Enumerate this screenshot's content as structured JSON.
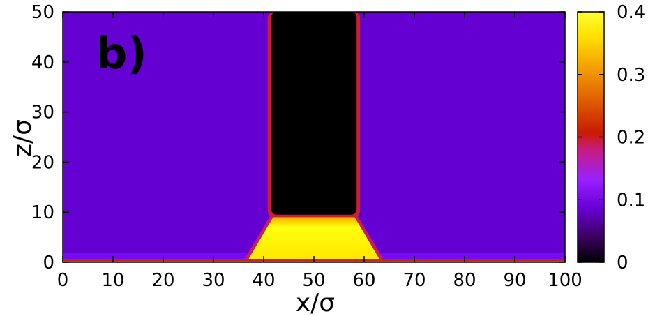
{
  "chart_data": {
    "type": "heatmap",
    "panel_label": "b)",
    "xlabel": "x/σ",
    "ylabel": "z/σ",
    "xlim": [
      0,
      100
    ],
    "ylim": [
      0,
      50
    ],
    "x_ticks": [
      0,
      10,
      20,
      30,
      40,
      50,
      60,
      70,
      80,
      90,
      100
    ],
    "y_ticks": [
      0,
      10,
      20,
      30,
      40,
      50
    ],
    "colorbar": {
      "range": [
        0,
        0.4
      ],
      "ticks": [
        0,
        0.1,
        0.2,
        0.3,
        0.4
      ],
      "colormap": [
        "#000000",
        "#3a0060",
        "#6a00d8",
        "#9a20ff",
        "#c81c80",
        "#c81c00",
        "#e06000",
        "#f5a000",
        "#ffe000",
        "#ffff30"
      ]
    },
    "field": {
      "background_value": 0.08,
      "wall_value": 0.25,
      "wall_z": 0.7,
      "solid_block": {
        "x": [
          41.5,
          58.5
        ],
        "z": [
          9.5,
          50
        ],
        "value": 0
      },
      "block_edge_value": 0.2,
      "dense_region": {
        "x_bottom": [
          37,
          63
        ],
        "x_top": [
          42,
          58
        ],
        "z": [
          0.7,
          9.2
        ],
        "value": 0.4
      }
    }
  }
}
